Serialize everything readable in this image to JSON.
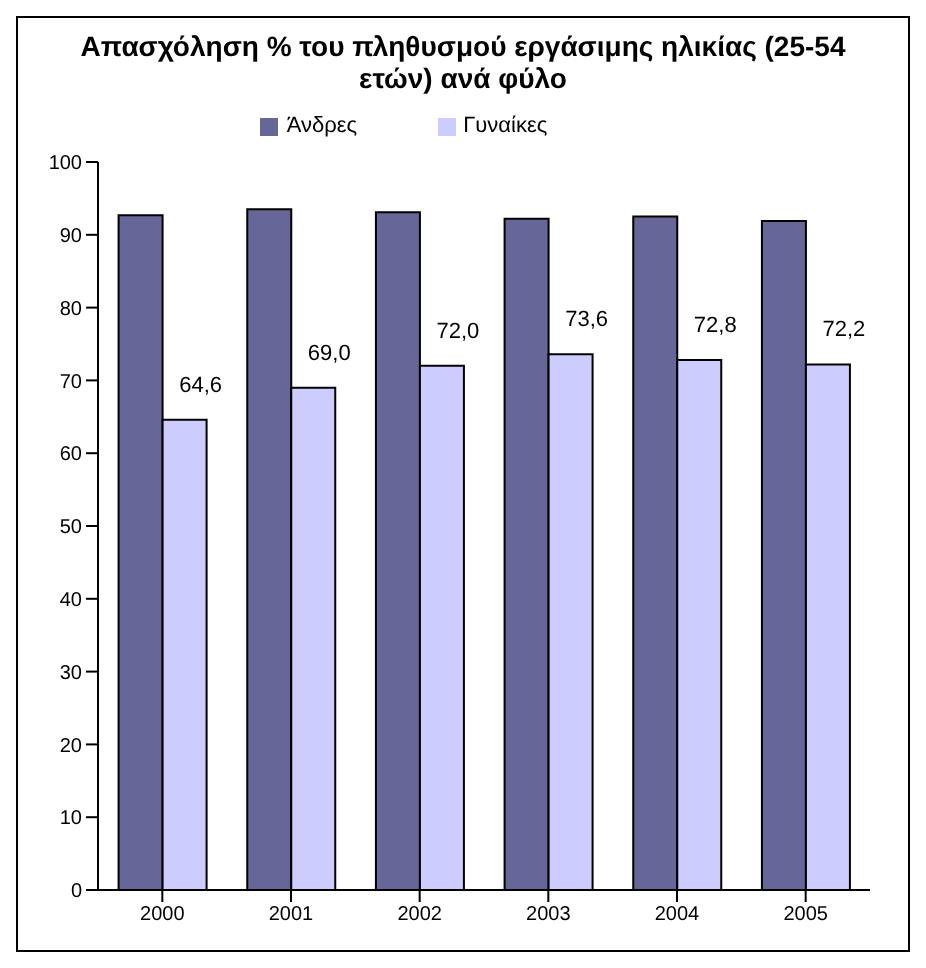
{
  "chart_data": {
    "type": "bar",
    "title": "Απασχόληση % του πληθυσμού εργάσιμης ηλικίας (25-54 ετών) ανά φύλο",
    "categories": [
      "2000",
      "2001",
      "2002",
      "2003",
      "2004",
      "2005"
    ],
    "series": [
      {
        "name": "Άνδρες",
        "color": "#666699",
        "values": [
          92.7,
          93.5,
          93.1,
          92.2,
          92.5,
          91.9
        ]
      },
      {
        "name": "Γυναίκες",
        "color": "#ccccff",
        "values": [
          64.6,
          69.0,
          72.0,
          73.6,
          72.8,
          72.2
        ],
        "value_labels": [
          "64,6",
          "69,0",
          "72,0",
          "73,6",
          "72,8",
          "72,2"
        ]
      }
    ],
    "ylim": [
      0,
      100
    ],
    "yticks": [
      0,
      10,
      20,
      30,
      40,
      50,
      60,
      70,
      80,
      90,
      100
    ],
    "grid": false,
    "legend": "top"
  }
}
